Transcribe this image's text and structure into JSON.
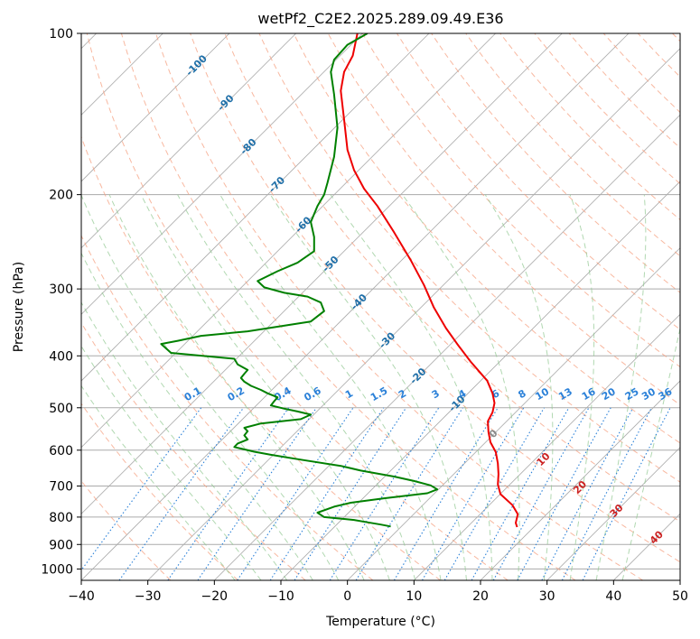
{
  "chart_data": {
    "type": "line",
    "title": "wetPf2_C2E2.2025.289.09.49.E36",
    "xlabel": "Temperature (°C)",
    "ylabel": "Pressure (hPa)",
    "xlim": [
      -40,
      50
    ],
    "ylim": [
      1050,
      100
    ],
    "y_scale": "log",
    "grid": true,
    "x_ticks": [
      -40,
      -30,
      -20,
      -10,
      0,
      10,
      20,
      30,
      40,
      50
    ],
    "y_ticks": [
      100,
      200,
      300,
      400,
      500,
      600,
      700,
      800,
      900,
      1000
    ],
    "colors": {
      "temperature": "#ee0000",
      "dewpoint": "#008000",
      "isotherm_grid": "#aaaaaa",
      "dry_adiabat": "#f5a080",
      "moist_adiabat": "#90c890",
      "mixing_ratio": "#2a80d8",
      "isotherm_label": "#1f6fa8",
      "wet_bulb_label": "#cc2222",
      "zero_label": "#888888"
    },
    "isotherm_labels": [
      {
        "text": "-100",
        "x": -100,
        "p": 115
      },
      {
        "text": "-90",
        "x": -90,
        "p": 135
      },
      {
        "text": "-80",
        "x": -80,
        "p": 163
      },
      {
        "text": "-70",
        "x": -70,
        "p": 192
      },
      {
        "text": "-60",
        "x": -60,
        "p": 228
      },
      {
        "text": "-50",
        "x": -50,
        "p": 270
      },
      {
        "text": "-40",
        "x": -40,
        "p": 318
      },
      {
        "text": "-30",
        "x": -30,
        "p": 375
      },
      {
        "text": "-20",
        "x": -20,
        "p": 437
      },
      {
        "text": "-10",
        "x": -10,
        "p": 492
      },
      {
        "text": "0",
        "x": 0,
        "p": 560
      }
    ],
    "mixing_ratio_labels": [
      {
        "text": "0.1",
        "t": -23
      },
      {
        "text": "0.2",
        "t": -16.5
      },
      {
        "text": "0.4",
        "t": -9.5
      },
      {
        "text": "0.6",
        "t": -5
      },
      {
        "text": "1",
        "t": 0.5
      },
      {
        "text": "1.5",
        "t": 5
      },
      {
        "text": "2",
        "t": 8.5
      },
      {
        "text": "3",
        "t": 13.5
      },
      {
        "text": "4",
        "t": 17.5
      },
      {
        "text": "6",
        "t": 22.5
      },
      {
        "text": "8",
        "t": 26.5
      },
      {
        "text": "10",
        "t": 29.5
      },
      {
        "text": "13",
        "t": 33
      },
      {
        "text": "16",
        "t": 36.5
      },
      {
        "text": "20",
        "t": 39.5
      },
      {
        "text": "25",
        "t": 43
      },
      {
        "text": "30",
        "t": 45.5
      },
      {
        "text": "36",
        "t": 48
      }
    ],
    "wet_bulb_labels": [
      {
        "text": "10",
        "t": 29.5,
        "p": 625
      },
      {
        "text": "20",
        "t": 35,
        "p": 705
      },
      {
        "text": "30",
        "t": 40.5,
        "p": 780
      },
      {
        "text": "40",
        "t": 46.5,
        "p": 875
      }
    ],
    "series": [
      {
        "name": "temperature",
        "values": [
          [
            1.5,
            100
          ],
          [
            0.8,
            110
          ],
          [
            -0.5,
            118
          ],
          [
            -1.0,
            128
          ],
          [
            -0.5,
            145
          ],
          [
            0.0,
            165
          ],
          [
            1.0,
            180
          ],
          [
            2.5,
            195
          ],
          [
            4.5,
            210
          ],
          [
            7.0,
            235
          ],
          [
            9.5,
            265
          ],
          [
            11.5,
            295
          ],
          [
            13.0,
            325
          ],
          [
            14.8,
            355
          ],
          [
            16.5,
            380
          ],
          [
            18.5,
            410
          ],
          [
            21.0,
            445
          ],
          [
            21.8,
            470
          ],
          [
            22.1,
            490
          ],
          [
            21.8,
            510
          ],
          [
            21.1,
            530
          ],
          [
            21.2,
            555
          ],
          [
            21.5,
            580
          ],
          [
            22.3,
            605
          ],
          [
            22.6,
            635
          ],
          [
            22.7,
            665
          ],
          [
            22.6,
            695
          ],
          [
            23.0,
            725
          ],
          [
            24.8,
            760
          ],
          [
            25.6,
            790
          ],
          [
            25.3,
            820
          ],
          [
            25.5,
            835
          ]
        ]
      },
      {
        "name": "dewpoint",
        "values": [
          [
            3.0,
            100
          ],
          [
            0.0,
            105
          ],
          [
            -2.0,
            112
          ],
          [
            -2.5,
            118
          ],
          [
            -2.0,
            130
          ],
          [
            -1.5,
            150
          ],
          [
            -2.0,
            170
          ],
          [
            -3.0,
            190
          ],
          [
            -3.5,
            200
          ],
          [
            -4.5,
            210
          ],
          [
            -5.5,
            225
          ],
          [
            -5.0,
            240
          ],
          [
            -5.0,
            255
          ],
          [
            -7.5,
            268
          ],
          [
            -10.5,
            278
          ],
          [
            -13.5,
            290
          ],
          [
            -12.5,
            298
          ],
          [
            -9.5,
            305
          ],
          [
            -6.0,
            310
          ],
          [
            -4.0,
            318
          ],
          [
            -3.5,
            330
          ],
          [
            -5.5,
            345
          ],
          [
            -15.0,
            360
          ],
          [
            -22.0,
            367
          ],
          [
            -25.5,
            375
          ],
          [
            -28.0,
            380
          ],
          [
            -26.5,
            395
          ],
          [
            -17.0,
            405
          ],
          [
            -16.5,
            415
          ],
          [
            -15.0,
            425
          ],
          [
            -15.5,
            432
          ],
          [
            -16.0,
            440
          ],
          [
            -15.5,
            447
          ],
          [
            -14.5,
            455
          ],
          [
            -13.0,
            463
          ],
          [
            -12.0,
            470
          ],
          [
            -10.5,
            478
          ],
          [
            -11.0,
            486
          ],
          [
            -11.5,
            495
          ],
          [
            -9.5,
            502
          ],
          [
            -7.5,
            508
          ],
          [
            -5.5,
            515
          ],
          [
            -7.0,
            525
          ],
          [
            -13.0,
            535
          ],
          [
            -15.5,
            545
          ],
          [
            -15.0,
            553
          ],
          [
            -15.5,
            563
          ],
          [
            -15.0,
            573
          ],
          [
            -16.5,
            583
          ],
          [
            -17.0,
            592
          ],
          [
            -15.5,
            598
          ],
          [
            -14.0,
            604
          ],
          [
            -11.5,
            612
          ],
          [
            -7.0,
            625
          ],
          [
            -1.0,
            642
          ],
          [
            2.0,
            655
          ],
          [
            7.0,
            672
          ],
          [
            10.0,
            685
          ],
          [
            12.5,
            698
          ],
          [
            13.5,
            710
          ],
          [
            12.0,
            722
          ],
          [
            5.5,
            738
          ],
          [
            0.5,
            752
          ],
          [
            -2.0,
            765
          ],
          [
            -4.5,
            785
          ],
          [
            -3.5,
            800
          ],
          [
            1.0,
            810
          ],
          [
            3.0,
            818
          ],
          [
            5.0,
            826
          ],
          [
            6.5,
            833
          ]
        ]
      }
    ]
  }
}
